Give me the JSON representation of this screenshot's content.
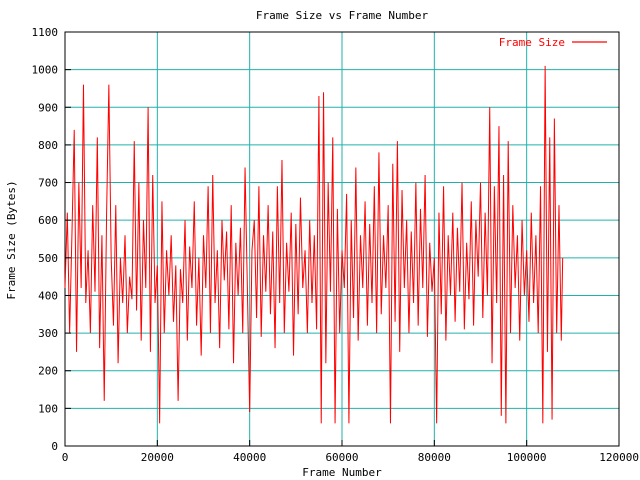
{
  "chart_data": {
    "type": "line",
    "title": "Frame Size vs Frame Number",
    "xlabel": "Frame Number",
    "ylabel": "Frame Size (Bytes)",
    "xlim": [
      0,
      120000
    ],
    "ylim": [
      0,
      1100
    ],
    "x_ticks": [
      0,
      20000,
      40000,
      60000,
      80000,
      100000,
      120000
    ],
    "x_tick_labels": [
      "0",
      "20000",
      "40000",
      "60000",
      "80000",
      "100000",
      "120000"
    ],
    "y_ticks": [
      0,
      100,
      200,
      300,
      400,
      500,
      600,
      700,
      800,
      900,
      1000,
      1100
    ],
    "y_tick_labels": [
      "0",
      "100",
      "200",
      "300",
      "400",
      "500",
      "600",
      "700",
      "800",
      "900",
      "1000",
      "1100"
    ],
    "grid": true,
    "legend_position": "top-right",
    "series": [
      {
        "name": "Frame Size",
        "color": "#ff0000",
        "points": [
          [
            0,
            420
          ],
          [
            500,
            620
          ],
          [
            1000,
            300
          ],
          [
            1500,
            560
          ],
          [
            2000,
            840
          ],
          [
            2500,
            250
          ],
          [
            3000,
            700
          ],
          [
            3500,
            420
          ],
          [
            4000,
            960
          ],
          [
            4500,
            380
          ],
          [
            5000,
            520
          ],
          [
            5500,
            300
          ],
          [
            6000,
            640
          ],
          [
            6500,
            410
          ],
          [
            7000,
            820
          ],
          [
            7500,
            260
          ],
          [
            8000,
            560
          ],
          [
            8500,
            120
          ],
          [
            9000,
            610
          ],
          [
            9500,
            960
          ],
          [
            10000,
            500
          ],
          [
            10500,
            320
          ],
          [
            11000,
            640
          ],
          [
            11500,
            220
          ],
          [
            12000,
            500
          ],
          [
            12500,
            380
          ],
          [
            13000,
            560
          ],
          [
            13500,
            300
          ],
          [
            14000,
            450
          ],
          [
            14500,
            390
          ],
          [
            15000,
            810
          ],
          [
            15500,
            360
          ],
          [
            16000,
            700
          ],
          [
            16500,
            280
          ],
          [
            17000,
            600
          ],
          [
            17500,
            420
          ],
          [
            18000,
            900
          ],
          [
            18500,
            250
          ],
          [
            19000,
            720
          ],
          [
            19500,
            380
          ],
          [
            20000,
            480
          ],
          [
            20500,
            60
          ],
          [
            21000,
            650
          ],
          [
            21500,
            300
          ],
          [
            22000,
            520
          ],
          [
            22500,
            400
          ],
          [
            23000,
            560
          ],
          [
            23500,
            330
          ],
          [
            24000,
            480
          ],
          [
            24500,
            120
          ],
          [
            25000,
            470
          ],
          [
            25500,
            380
          ],
          [
            26000,
            600
          ],
          [
            26500,
            280
          ],
          [
            27000,
            530
          ],
          [
            27500,
            420
          ],
          [
            28000,
            650
          ],
          [
            28500,
            320
          ],
          [
            29000,
            500
          ],
          [
            29500,
            240
          ],
          [
            30000,
            560
          ],
          [
            30500,
            420
          ],
          [
            31000,
            690
          ],
          [
            31500,
            300
          ],
          [
            32000,
            720
          ],
          [
            32500,
            380
          ],
          [
            33000,
            520
          ],
          [
            33500,
            260
          ],
          [
            34000,
            600
          ],
          [
            34500,
            440
          ],
          [
            35000,
            570
          ],
          [
            35500,
            310
          ],
          [
            36000,
            640
          ],
          [
            36500,
            220
          ],
          [
            37000,
            540
          ],
          [
            37500,
            400
          ],
          [
            38000,
            580
          ],
          [
            38500,
            300
          ],
          [
            39000,
            740
          ],
          [
            39500,
            420
          ],
          [
            40000,
            90
          ],
          [
            40500,
            520
          ],
          [
            41000,
            600
          ],
          [
            41500,
            340
          ],
          [
            42000,
            690
          ],
          [
            42500,
            290
          ],
          [
            43000,
            560
          ],
          [
            43500,
            410
          ],
          [
            44000,
            640
          ],
          [
            44500,
            350
          ],
          [
            45000,
            570
          ],
          [
            45500,
            260
          ],
          [
            46000,
            690
          ],
          [
            46500,
            380
          ],
          [
            47000,
            760
          ],
          [
            47500,
            300
          ],
          [
            48000,
            540
          ],
          [
            48500,
            410
          ],
          [
            49000,
            620
          ],
          [
            49500,
            240
          ],
          [
            50000,
            590
          ],
          [
            50500,
            350
          ],
          [
            51000,
            660
          ],
          [
            51500,
            420
          ],
          [
            52000,
            520
          ],
          [
            52500,
            300
          ],
          [
            53000,
            600
          ],
          [
            53500,
            380
          ],
          [
            54000,
            560
          ],
          [
            54500,
            310
          ],
          [
            55000,
            930
          ],
          [
            55500,
            60
          ],
          [
            56000,
            940
          ],
          [
            56500,
            220
          ],
          [
            57000,
            700
          ],
          [
            57500,
            410
          ],
          [
            58000,
            820
          ],
          [
            58500,
            60
          ],
          [
            59000,
            630
          ],
          [
            59500,
            300
          ],
          [
            60000,
            520
          ],
          [
            60500,
            420
          ],
          [
            61000,
            670
          ],
          [
            61500,
            60
          ],
          [
            62000,
            600
          ],
          [
            62500,
            340
          ],
          [
            63000,
            740
          ],
          [
            63500,
            280
          ],
          [
            64000,
            560
          ],
          [
            64500,
            420
          ],
          [
            65000,
            650
          ],
          [
            65500,
            320
          ],
          [
            66000,
            590
          ],
          [
            66500,
            380
          ],
          [
            67000,
            690
          ],
          [
            67500,
            300
          ],
          [
            68000,
            780
          ],
          [
            68500,
            350
          ],
          [
            69000,
            560
          ],
          [
            69500,
            420
          ],
          [
            70000,
            640
          ],
          [
            70500,
            60
          ],
          [
            71000,
            750
          ],
          [
            71500,
            330
          ],
          [
            72000,
            810
          ],
          [
            72500,
            250
          ],
          [
            73000,
            680
          ],
          [
            73500,
            420
          ],
          [
            74000,
            600
          ],
          [
            74500,
            300
          ],
          [
            75000,
            570
          ],
          [
            75500,
            380
          ],
          [
            76000,
            700
          ],
          [
            76500,
            320
          ],
          [
            77000,
            630
          ],
          [
            77500,
            420
          ],
          [
            78000,
            720
          ],
          [
            78500,
            290
          ],
          [
            79000,
            540
          ],
          [
            79500,
            410
          ],
          [
            80000,
            500
          ],
          [
            80500,
            60
          ],
          [
            81000,
            620
          ],
          [
            81500,
            350
          ],
          [
            82000,
            690
          ],
          [
            82500,
            280
          ],
          [
            83000,
            560
          ],
          [
            83500,
            400
          ],
          [
            84000,
            620
          ],
          [
            84500,
            330
          ],
          [
            85000,
            580
          ],
          [
            85500,
            410
          ],
          [
            86000,
            700
          ],
          [
            86500,
            310
          ],
          [
            87000,
            540
          ],
          [
            87500,
            390
          ],
          [
            88000,
            650
          ],
          [
            88500,
            320
          ],
          [
            89000,
            600
          ],
          [
            89500,
            450
          ],
          [
            90000,
            700
          ],
          [
            90500,
            340
          ],
          [
            91000,
            620
          ],
          [
            91500,
            400
          ],
          [
            92000,
            900
          ],
          [
            92500,
            220
          ],
          [
            93000,
            690
          ],
          [
            93500,
            380
          ],
          [
            94000,
            850
          ],
          [
            94500,
            80
          ],
          [
            95000,
            720
          ],
          [
            95500,
            60
          ],
          [
            96000,
            810
          ],
          [
            96500,
            300
          ],
          [
            97000,
            640
          ],
          [
            97500,
            420
          ],
          [
            98000,
            560
          ],
          [
            98500,
            280
          ],
          [
            99000,
            600
          ],
          [
            99500,
            400
          ],
          [
            100000,
            520
          ],
          [
            100500,
            330
          ],
          [
            101000,
            620
          ],
          [
            101500,
            380
          ],
          [
            102000,
            560
          ],
          [
            102500,
            300
          ],
          [
            103000,
            690
          ],
          [
            103500,
            60
          ],
          [
            104000,
            1010
          ],
          [
            104500,
            250
          ],
          [
            105000,
            820
          ],
          [
            105500,
            70
          ],
          [
            106000,
            870
          ],
          [
            106500,
            300
          ],
          [
            107000,
            640
          ],
          [
            107500,
            280
          ],
          [
            107800,
            500
          ]
        ]
      }
    ]
  }
}
